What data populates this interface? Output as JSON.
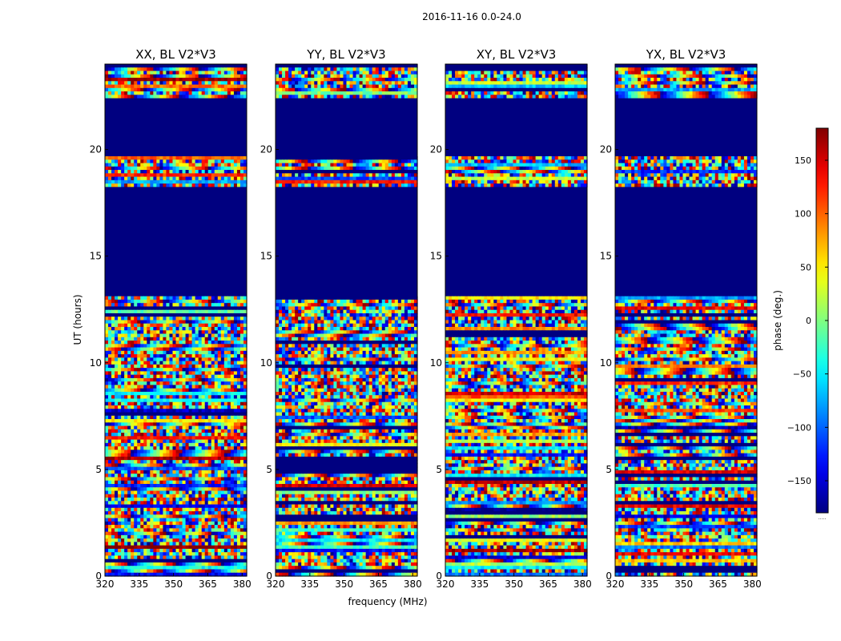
{
  "figure_title": "2016-11-16 0.0-24.0",
  "colormap": "jet",
  "colorbar": {
    "label": "phase (deg.)",
    "range": [
      -180,
      180
    ],
    "ticks": [
      -150,
      -100,
      -50,
      0,
      50,
      100,
      150
    ],
    "tick_labels": [
      "−150",
      "−100",
      "−50",
      "0",
      "50",
      "100",
      "150"
    ],
    "footnote": "....."
  },
  "chart_data": [
    {
      "type": "heatmap",
      "title": "XX, BL V2*V3",
      "xlabel": "frequency (MHz)",
      "ylabel": "UT (hours)",
      "xlim": [
        320,
        382
      ],
      "ylim": [
        0,
        24
      ],
      "xticks": [
        "320",
        "335",
        "350",
        "365",
        "380"
      ],
      "yticks": [
        "0",
        "5",
        "10",
        "15",
        "20"
      ],
      "flagged_ut_ranges": [
        [
          13.2,
          18.3
        ],
        [
          19.7,
          22.4
        ]
      ],
      "colorbar_ref": "phase (deg.)"
    },
    {
      "type": "heatmap",
      "title": "YY, BL V2*V3",
      "xlabel": "frequency (MHz)",
      "ylabel": "UT (hours)",
      "xlim": [
        320,
        382
      ],
      "ylim": [
        0,
        24
      ],
      "xticks": [
        "320",
        "335",
        "350",
        "365",
        "380"
      ],
      "yticks": [
        "0",
        "5",
        "10",
        "15",
        "20"
      ],
      "flagged_ut_ranges": [
        [
          13.2,
          18.3
        ],
        [
          19.7,
          22.4
        ]
      ],
      "colorbar_ref": "phase (deg.)"
    },
    {
      "type": "heatmap",
      "title": "XY, BL V2*V3",
      "xlabel": "frequency (MHz)",
      "ylabel": "UT (hours)",
      "xlim": [
        320,
        382
      ],
      "ylim": [
        0,
        24
      ],
      "xticks": [
        "320",
        "335",
        "350",
        "365",
        "380"
      ],
      "yticks": [
        "0",
        "5",
        "10",
        "15",
        "20"
      ],
      "flagged_ut_ranges": [
        [
          13.2,
          18.3
        ],
        [
          19.7,
          22.4
        ]
      ],
      "colorbar_ref": "phase (deg.)"
    },
    {
      "type": "heatmap",
      "title": "YX, BL V2*V3",
      "xlabel": "frequency (MHz)",
      "ylabel": "UT (hours)",
      "xlim": [
        320,
        382
      ],
      "ylim": [
        0,
        24
      ],
      "xticks": [
        "320",
        "335",
        "350",
        "365",
        "380"
      ],
      "yticks": [
        "0",
        "5",
        "10",
        "15",
        "20"
      ],
      "flagged_ut_ranges": [
        [
          13.2,
          18.3
        ],
        [
          19.7,
          22.4
        ]
      ],
      "colorbar_ref": "phase (deg.)"
    }
  ]
}
